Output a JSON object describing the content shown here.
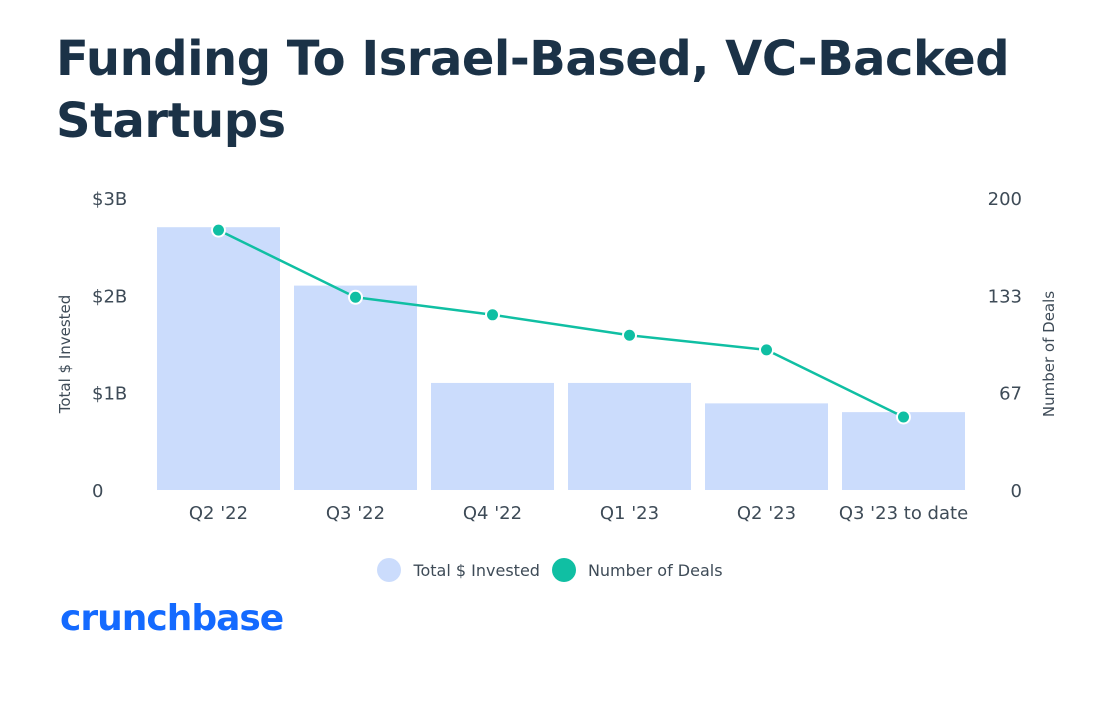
{
  "title": "Funding To Israel-Based, VC-Backed Startups",
  "brand": "crunchbase",
  "colors": {
    "bar": "#cbdcfc",
    "line": "#10bfa3",
    "title": "#1b3247",
    "brand": "#146aff"
  },
  "chart_data": {
    "type": "bar",
    "categories": [
      "Q2 '22",
      "Q3 '22",
      "Q4 '22",
      "Q1 '23",
      "Q2 '23",
      "Q3 '23 to date"
    ],
    "series": [
      {
        "name": "Total $ Invested",
        "type": "bar",
        "axis": "left",
        "values": [
          2.7,
          2.1,
          1.1,
          1.1,
          0.89,
          0.8
        ]
      },
      {
        "name": "Number of Deals",
        "type": "line",
        "axis": "right",
        "values": [
          178,
          132,
          120,
          106,
          96,
          50
        ]
      }
    ],
    "ylabel": "Total $ Invested",
    "y2label": "Number of Deals",
    "ylim": [
      0,
      3
    ],
    "y2lim": [
      0,
      200
    ],
    "yticks": [
      "0",
      "$1B",
      "$2B",
      "$3B"
    ],
    "y2ticks": [
      "0",
      "67",
      "133",
      "200"
    ],
    "grid": false,
    "legend": "bottom-center"
  }
}
